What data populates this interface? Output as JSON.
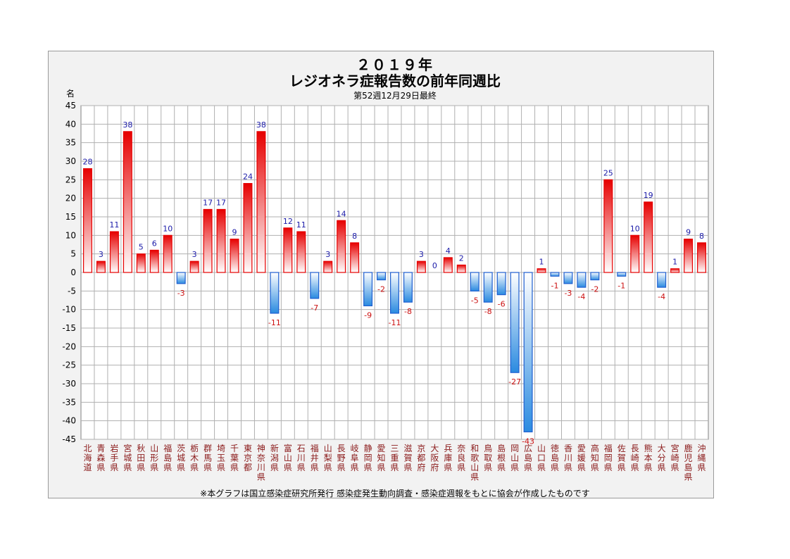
{
  "chart_data": {
    "type": "bar",
    "title_year": "２０１９年",
    "title": "レジオネラ症報告数の前年同週比",
    "subtitle": "第52週12月29日最終",
    "ylabel": "名",
    "footnote": "※本グラフは国立感染症研究所発行 感染症発生動向調査・感染症週報をもとに協会が作成したものです",
    "ylim": [
      -45,
      45
    ],
    "ytick_step": 5,
    "grid": true,
    "colors": {
      "positive": "#e60000",
      "negative": "#1f5fd0",
      "positive_label": "#1a1aa8",
      "negative_label": "#cc1111"
    },
    "categories": [
      "北海道",
      "青森県",
      "岩手県",
      "宮城県",
      "秋田県",
      "山形県",
      "福島県",
      "茨城県",
      "栃木県",
      "群馬県",
      "埼玉県",
      "千葉県",
      "東京都",
      "神奈川県",
      "新潟県",
      "富山県",
      "石川県",
      "福井県",
      "山梨県",
      "長野県",
      "岐阜県",
      "静岡県",
      "愛知県",
      "三重県",
      "滋賀県",
      "京都府",
      "大阪府",
      "兵庫県",
      "奈良県",
      "和歌山県",
      "鳥取県",
      "島根県",
      "岡山県",
      "広島県",
      "山口県",
      "徳島県",
      "香川県",
      "愛媛県",
      "高知県",
      "福岡県",
      "佐賀県",
      "長崎県",
      "熊本県",
      "大分県",
      "宮崎県",
      "鹿児島県",
      "沖縄県"
    ],
    "values": [
      28,
      3,
      11,
      38,
      5,
      6,
      10,
      -3,
      3,
      17,
      17,
      9,
      24,
      38,
      -11,
      12,
      11,
      -7,
      3,
      14,
      8,
      -9,
      -2,
      -11,
      -8,
      3,
      0,
      4,
      2,
      -5,
      -8,
      -6,
      -27,
      -43,
      1,
      -1,
      -3,
      -4,
      -2,
      25,
      -1,
      10,
      19,
      -4,
      1,
      9,
      8
    ]
  }
}
